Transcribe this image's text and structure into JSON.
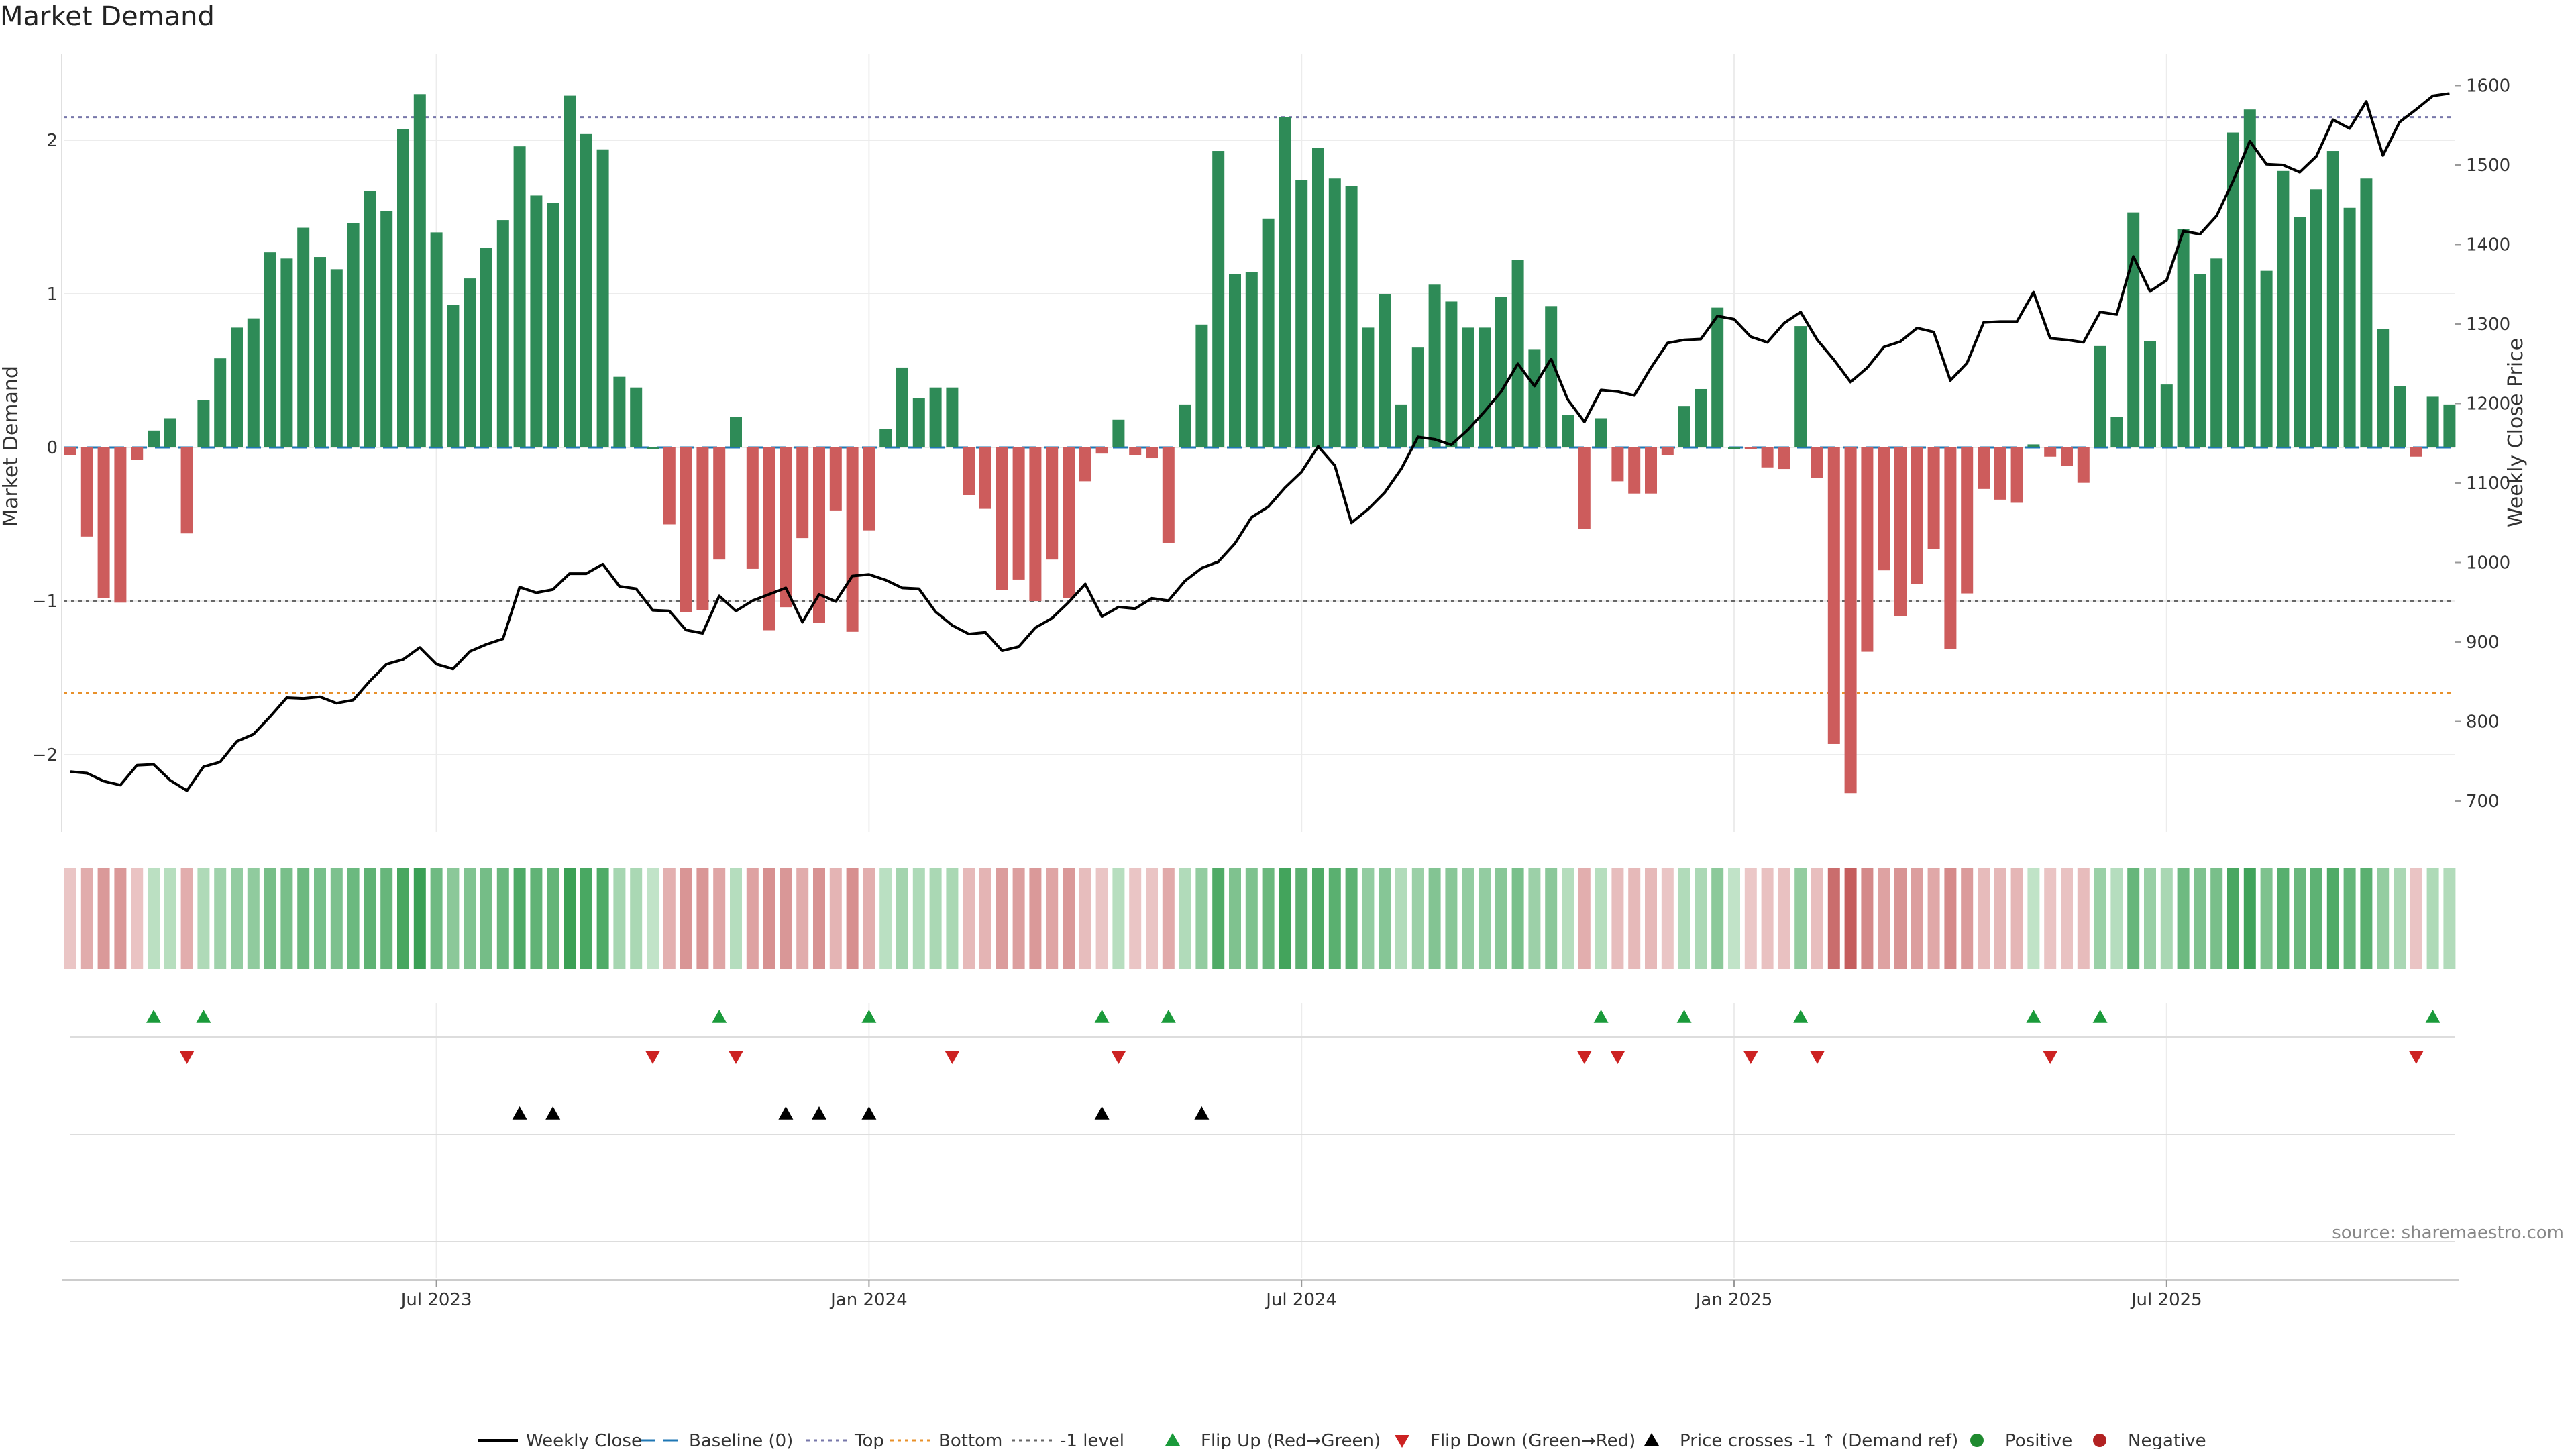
{
  "chart_data": {
    "type": "bar+line",
    "title": "Market Demand",
    "y_left_label": "Market Demand",
    "y_right_label": "Weekly Close Price",
    "y_left_ticks": [
      -2,
      -1,
      0,
      1,
      2
    ],
    "y_left_tick_labels": [
      "−2",
      "−1",
      "0",
      "1",
      "2"
    ],
    "y_right_ticks": [
      700,
      800,
      900,
      1000,
      1100,
      1200,
      1300,
      1400,
      1500,
      1600
    ],
    "y_left_range": [
      -2.5,
      2.6
    ],
    "y_right_range": [
      660,
      1630
    ],
    "x_ticks": [
      {
        "label": "Jul 2023",
        "index": 22
      },
      {
        "label": "Jan 2024",
        "index": 48
      },
      {
        "label": "Jul 2024",
        "index": 74
      },
      {
        "label": "Jan 2025",
        "index": 100
      },
      {
        "label": "Jul 2025",
        "index": 126
      }
    ],
    "top_level": 2.15,
    "bottom_level": -1.6,
    "minus_one_level": -1,
    "colors": {
      "positive": "#2e8b57",
      "negative": "#cd5c5c",
      "price": "#000000",
      "top": "#7777aa",
      "bottom": "#e8902a",
      "minus_one": "#666666",
      "flip_up": "#1a9a3a",
      "flip_down": "#cc2222",
      "cross": "#000000",
      "baseline": "#1f77b4"
    },
    "demand": [
      -0.05,
      -0.58,
      -0.98,
      -1.01,
      -0.08,
      0.11,
      0.19,
      -0.56,
      0.31,
      0.58,
      0.78,
      0.84,
      1.27,
      1.23,
      1.43,
      1.24,
      1.16,
      1.46,
      1.67,
      1.54,
      2.07,
      2.3,
      1.4,
      0.93,
      1.1,
      1.3,
      1.48,
      1.96,
      1.64,
      1.59,
      2.29,
      2.04,
      1.94,
      0.46,
      0.39,
      0.0,
      -0.5,
      -1.07,
      -1.06,
      -0.73,
      0.2,
      -0.79,
      -1.19,
      -1.04,
      -0.59,
      -1.14,
      -0.41,
      -1.2,
      -0.54,
      0.12,
      0.52,
      0.32,
      0.39,
      0.39,
      -0.31,
      -0.4,
      -0.93,
      -0.86,
      -1.0,
      -0.73,
      -0.98,
      -0.22,
      -0.04,
      0.18,
      -0.05,
      -0.07,
      -0.62,
      0.28,
      0.8,
      1.93,
      1.13,
      1.14,
      1.49,
      2.15,
      1.74,
      1.95,
      1.75,
      1.7,
      0.78,
      1.0,
      0.28,
      0.65,
      1.06,
      0.95,
      0.78,
      0.78,
      0.98,
      1.22,
      0.64,
      0.92,
      0.21,
      -0.53,
      0.19,
      -0.22,
      -0.3,
      -0.3,
      -0.05,
      0.27,
      0.38,
      0.91,
      0.0,
      -0.01,
      -0.13,
      -0.14,
      0.79,
      -0.2,
      -1.93,
      -2.25,
      -1.33,
      -0.8,
      -1.1,
      -0.89,
      -0.66,
      -1.31,
      -0.95,
      -0.27,
      -0.34,
      -0.36,
      0.02,
      -0.06,
      -0.12,
      -0.23,
      0.66,
      0.2,
      1.53,
      0.69,
      0.41,
      1.42,
      1.13,
      1.23,
      2.05,
      2.2,
      1.15,
      1.8,
      1.5,
      1.68,
      1.93,
      1.56,
      1.75,
      0.77,
      0.4,
      -0.06,
      0.33,
      0.28
    ],
    "price": [
      737,
      735,
      725,
      720,
      745,
      746,
      726,
      713,
      743,
      749,
      775,
      784,
      806,
      830,
      829,
      831,
      823,
      827,
      851,
      872,
      878,
      893,
      872,
      866,
      888,
      897,
      904,
      969,
      962,
      966,
      986,
      986,
      998,
      970,
      967,
      940,
      939,
      915,
      911,
      958,
      939,
      952,
      960,
      968,
      925,
      960,
      951,
      983,
      985,
      978,
      968,
      967,
      938,
      921,
      910,
      912,
      889,
      894,
      918,
      930,
      950,
      973,
      932,
      944,
      942,
      955,
      952,
      977,
      993,
      1001,
      1024,
      1057,
      1070,
      1094,
      1114,
      1146,
      1122,
      1050,
      1067,
      1088,
      1118,
      1158,
      1155,
      1148,
      1167,
      1190,
      1215,
      1250,
      1222,
      1256,
      1205,
      1177,
      1217,
      1215,
      1210,
      1245,
      1276,
      1280,
      1281,
      1310,
      1306,
      1284,
      1277,
      1301,
      1315,
      1280,
      1255,
      1227,
      1245,
      1271,
      1278,
      1295,
      1290,
      1229,
      1251,
      1302,
      1303,
      1303,
      1340,
      1282,
      1280,
      1277,
      1315,
      1312,
      1385,
      1341,
      1355,
      1417,
      1413,
      1436,
      1480,
      1530,
      1501,
      1500,
      1491,
      1511,
      1557,
      1546,
      1580,
      1512,
      1554,
      1570,
      1587,
      1590
    ],
    "flip_up_indices": [
      5,
      8,
      39,
      48,
      62,
      66,
      92,
      97,
      104,
      118,
      122,
      142
    ],
    "flip_down_indices": [
      7,
      35,
      40,
      53,
      63,
      91,
      93,
      101,
      105,
      119,
      141
    ],
    "cross_indices": [
      27,
      29,
      43,
      45,
      48,
      62,
      68
    ],
    "source": "source: sharemaestro.com",
    "legend": [
      {
        "type": "line",
        "label": "Weekly Close"
      },
      {
        "type": "dash-baseline",
        "label": "Baseline (0)"
      },
      {
        "type": "dot-top",
        "label": "Top"
      },
      {
        "type": "dot-bottom",
        "label": "Bottom"
      },
      {
        "type": "dot-minus-one",
        "label": "-1 level"
      },
      {
        "type": "tri-up-green",
        "label": "Flip Up (Red→Green)"
      },
      {
        "type": "tri-down-red",
        "label": "Flip Down (Green→Red)"
      },
      {
        "type": "tri-up-black",
        "label": "Price crosses -1 ↑ (Demand ref)"
      },
      {
        "type": "circle-green",
        "label": "Positive"
      },
      {
        "type": "circle-red",
        "label": "Negative"
      }
    ]
  }
}
